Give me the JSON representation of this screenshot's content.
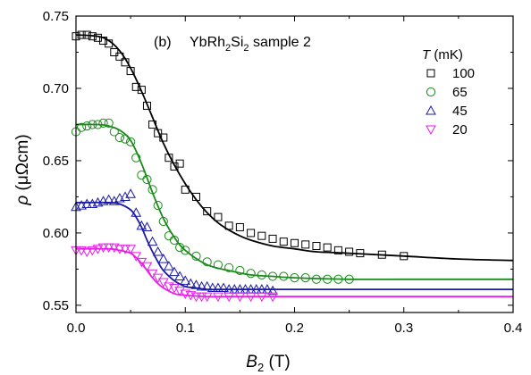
{
  "chart_data": {
    "type": "scatter",
    "panel_label": "(b)",
    "title_parts": {
      "a": "YbRh",
      "b": "2",
      "c": "Si",
      "d": "2",
      "e": " sample 2"
    },
    "xlabel": {
      "sym": "B",
      "sub": "2",
      "unit": " (T)"
    },
    "ylabel": {
      "sym": "ρ",
      "unit": " (μΩcm)"
    },
    "xlim": [
      0,
      0.4
    ],
    "ylim": [
      0.545,
      0.75
    ],
    "xticks": [
      "0.0",
      "0.1",
      "0.2",
      "0.3",
      "0.4"
    ],
    "yticks": [
      "0.55",
      "0.60",
      "0.65",
      "0.70",
      "0.75"
    ],
    "xtick_values": [
      0,
      0.1,
      0.2,
      0.3,
      0.4
    ],
    "ytick_values": [
      0.55,
      0.6,
      0.65,
      0.7,
      0.75
    ],
    "legend": {
      "title_sym": "T",
      "title_unit": " (mK)",
      "placement": "top-right"
    },
    "series": [
      {
        "name": "100",
        "color": "#000000",
        "marker": "square",
        "x": [
          0.0,
          0.005,
          0.01,
          0.015,
          0.02,
          0.025,
          0.03,
          0.035,
          0.04,
          0.045,
          0.05,
          0.055,
          0.06,
          0.065,
          0.07,
          0.075,
          0.08,
          0.085,
          0.09,
          0.095,
          0.1,
          0.11,
          0.12,
          0.13,
          0.14,
          0.15,
          0.16,
          0.17,
          0.18,
          0.19,
          0.2,
          0.21,
          0.22,
          0.23,
          0.24,
          0.25,
          0.26,
          0.28,
          0.3
        ],
        "y": [
          0.736,
          0.737,
          0.737,
          0.736,
          0.735,
          0.733,
          0.731,
          0.725,
          0.722,
          0.718,
          0.712,
          0.701,
          0.699,
          0.688,
          0.675,
          0.669,
          0.666,
          0.652,
          0.646,
          0.648,
          0.63,
          0.625,
          0.615,
          0.611,
          0.605,
          0.604,
          0.6,
          0.598,
          0.596,
          0.594,
          0.593,
          0.592,
          0.591,
          0.59,
          0.588,
          0.587,
          0.586,
          0.585,
          0.584
        ],
        "fit_x": [
          0,
          0.02,
          0.03,
          0.04,
          0.05,
          0.06,
          0.07,
          0.08,
          0.09,
          0.1,
          0.11,
          0.12,
          0.13,
          0.14,
          0.15,
          0.16,
          0.18,
          0.2,
          0.22,
          0.25,
          0.3,
          0.35,
          0.4
        ],
        "fit_y": [
          0.737,
          0.736,
          0.733,
          0.726,
          0.714,
          0.698,
          0.68,
          0.662,
          0.647,
          0.634,
          0.623,
          0.614,
          0.607,
          0.602,
          0.598,
          0.595,
          0.591,
          0.589,
          0.587,
          0.586,
          0.584,
          0.582,
          0.581
        ]
      },
      {
        "name": "65",
        "color": "#1a8a1a",
        "marker": "circle",
        "x": [
          0.0,
          0.005,
          0.01,
          0.015,
          0.02,
          0.025,
          0.03,
          0.035,
          0.04,
          0.045,
          0.05,
          0.055,
          0.06,
          0.065,
          0.07,
          0.075,
          0.08,
          0.085,
          0.09,
          0.095,
          0.1,
          0.11,
          0.12,
          0.13,
          0.14,
          0.15,
          0.16,
          0.17,
          0.18,
          0.19,
          0.2,
          0.21,
          0.22,
          0.23,
          0.24,
          0.25
        ],
        "y": [
          0.67,
          0.673,
          0.674,
          0.675,
          0.675,
          0.676,
          0.676,
          0.67,
          0.666,
          0.665,
          0.663,
          0.652,
          0.64,
          0.637,
          0.63,
          0.619,
          0.608,
          0.598,
          0.595,
          0.59,
          0.588,
          0.584,
          0.58,
          0.578,
          0.576,
          0.574,
          0.572,
          0.571,
          0.57,
          0.57,
          0.569,
          0.569,
          0.568,
          0.568,
          0.568,
          0.568
        ],
        "fit_x": [
          0,
          0.02,
          0.03,
          0.04,
          0.05,
          0.06,
          0.07,
          0.08,
          0.09,
          0.1,
          0.12,
          0.14,
          0.16,
          0.18,
          0.2,
          0.25,
          0.3,
          0.4
        ],
        "fit_y": [
          0.675,
          0.675,
          0.674,
          0.671,
          0.664,
          0.648,
          0.628,
          0.61,
          0.597,
          0.588,
          0.578,
          0.574,
          0.571,
          0.57,
          0.569,
          0.568,
          0.568,
          0.568
        ]
      },
      {
        "name": "45",
        "color": "#1a1aa6",
        "marker": "triangle-up",
        "x": [
          0.0,
          0.005,
          0.01,
          0.015,
          0.02,
          0.025,
          0.03,
          0.035,
          0.04,
          0.045,
          0.05,
          0.055,
          0.06,
          0.065,
          0.07,
          0.075,
          0.08,
          0.085,
          0.09,
          0.095,
          0.1,
          0.105,
          0.11,
          0.115,
          0.12,
          0.125,
          0.13,
          0.135,
          0.14,
          0.145,
          0.15,
          0.155,
          0.16,
          0.165,
          0.17,
          0.175,
          0.18
        ],
        "y": [
          0.618,
          0.619,
          0.62,
          0.62,
          0.621,
          0.622,
          0.623,
          0.622,
          0.624,
          0.625,
          0.627,
          0.614,
          0.605,
          0.604,
          0.594,
          0.587,
          0.582,
          0.577,
          0.573,
          0.57,
          0.567,
          0.565,
          0.564,
          0.563,
          0.563,
          0.562,
          0.562,
          0.562,
          0.561,
          0.561,
          0.561,
          0.561,
          0.561,
          0.561,
          0.561,
          0.561,
          0.56
        ],
        "fit_x": [
          0,
          0.03,
          0.04,
          0.05,
          0.055,
          0.06,
          0.065,
          0.07,
          0.075,
          0.08,
          0.09,
          0.1,
          0.11,
          0.12,
          0.14,
          0.2,
          0.3,
          0.4
        ],
        "fit_y": [
          0.621,
          0.621,
          0.62,
          0.616,
          0.611,
          0.604,
          0.595,
          0.587,
          0.58,
          0.574,
          0.567,
          0.563,
          0.562,
          0.561,
          0.561,
          0.561,
          0.561,
          0.561
        ]
      },
      {
        "name": "20",
        "color": "#e61ee6",
        "marker": "triangle-down",
        "x": [
          0.0,
          0.005,
          0.01,
          0.015,
          0.02,
          0.025,
          0.03,
          0.035,
          0.04,
          0.045,
          0.05,
          0.055,
          0.06,
          0.065,
          0.07,
          0.075,
          0.08,
          0.085,
          0.09,
          0.095,
          0.1,
          0.105,
          0.11,
          0.115,
          0.12,
          0.13,
          0.14,
          0.15,
          0.16,
          0.17,
          0.18
        ],
        "y": [
          0.588,
          0.588,
          0.587,
          0.588,
          0.589,
          0.59,
          0.59,
          0.59,
          0.589,
          0.589,
          0.589,
          0.584,
          0.58,
          0.577,
          0.572,
          0.569,
          0.566,
          0.563,
          0.562,
          0.56,
          0.558,
          0.557,
          0.556,
          0.556,
          0.556,
          0.556,
          0.556,
          0.556,
          0.556,
          0.556,
          0.556
        ],
        "fit_x": [
          0,
          0.03,
          0.04,
          0.05,
          0.055,
          0.06,
          0.065,
          0.07,
          0.075,
          0.08,
          0.09,
          0.1,
          0.12,
          0.14,
          0.2,
          0.3,
          0.4
        ],
        "fit_y": [
          0.589,
          0.589,
          0.588,
          0.586,
          0.583,
          0.579,
          0.574,
          0.569,
          0.565,
          0.562,
          0.558,
          0.557,
          0.556,
          0.556,
          0.556,
          0.556,
          0.556
        ]
      }
    ]
  }
}
